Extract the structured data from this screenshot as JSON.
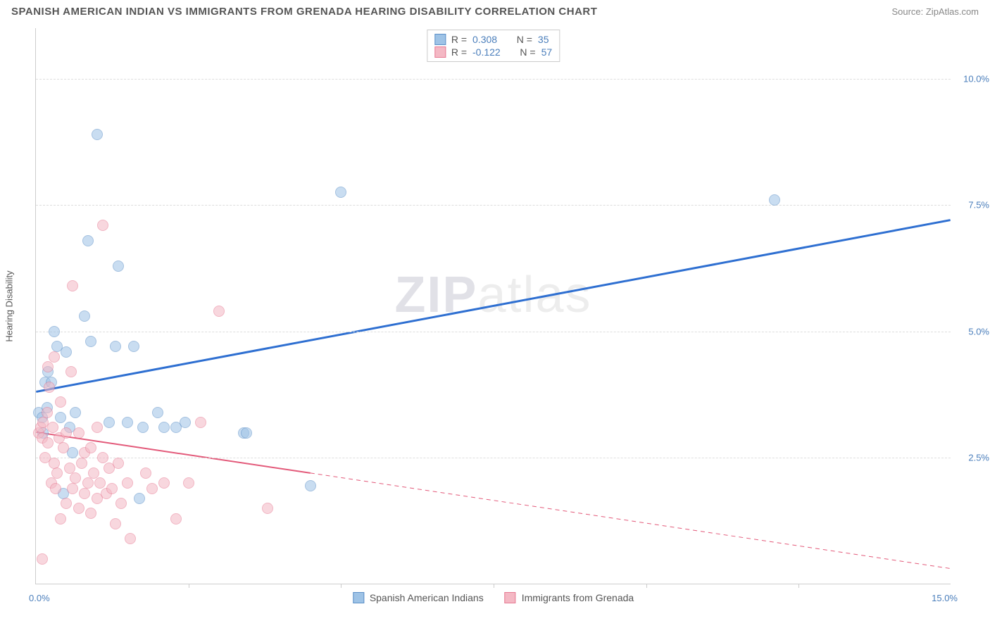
{
  "title": "SPANISH AMERICAN INDIAN VS IMMIGRANTS FROM GRENADA HEARING DISABILITY CORRELATION CHART",
  "source": "Source: ZipAtlas.com",
  "ylabel": "Hearing Disability",
  "watermark_a": "ZIP",
  "watermark_b": "atlas",
  "chart": {
    "type": "scatter",
    "xlim": [
      0,
      15
    ],
    "ylim": [
      0,
      11
    ],
    "x_axis_label_left": "0.0%",
    "x_axis_label_right": "15.0%",
    "y_ticks": [
      {
        "v": 2.5,
        "label": "2.5%"
      },
      {
        "v": 5.0,
        "label": "5.0%"
      },
      {
        "v": 7.5,
        "label": "7.5%"
      },
      {
        "v": 10.0,
        "label": "10.0%"
      }
    ],
    "x_tick_positions": [
      2.5,
      5.0,
      7.5,
      10.0,
      12.5
    ],
    "grid_color": "#dddddd",
    "background_color": "#ffffff",
    "marker_radius": 8,
    "marker_opacity": 0.55,
    "series": [
      {
        "name": "Spanish American Indians",
        "color_fill": "#9ec3e6",
        "color_stroke": "#5b8fc7",
        "R": "0.308",
        "N": "35",
        "trend": {
          "x1": 0,
          "y1": 3.8,
          "x2": 15,
          "y2": 7.2,
          "solid_until_x": 15,
          "color": "#2e6fd1",
          "width": 3
        },
        "points": [
          [
            0.05,
            3.4
          ],
          [
            0.1,
            3.3
          ],
          [
            0.12,
            3.0
          ],
          [
            0.15,
            4.0
          ],
          [
            0.18,
            3.5
          ],
          [
            0.2,
            4.2
          ],
          [
            0.25,
            4.0
          ],
          [
            0.3,
            5.0
          ],
          [
            0.35,
            4.7
          ],
          [
            0.4,
            3.3
          ],
          [
            0.45,
            1.8
          ],
          [
            0.5,
            4.6
          ],
          [
            0.55,
            3.1
          ],
          [
            0.6,
            2.6
          ],
          [
            0.65,
            3.4
          ],
          [
            0.8,
            5.3
          ],
          [
            0.85,
            6.8
          ],
          [
            0.9,
            4.8
          ],
          [
            1.0,
            8.9
          ],
          [
            1.2,
            3.2
          ],
          [
            1.3,
            4.7
          ],
          [
            1.35,
            6.3
          ],
          [
            1.5,
            3.2
          ],
          [
            1.6,
            4.7
          ],
          [
            1.7,
            1.7
          ],
          [
            1.75,
            3.1
          ],
          [
            2.0,
            3.4
          ],
          [
            2.1,
            3.1
          ],
          [
            2.3,
            3.1
          ],
          [
            2.45,
            3.2
          ],
          [
            3.4,
            3.0
          ],
          [
            3.45,
            3.0
          ],
          [
            4.5,
            1.95
          ],
          [
            5.0,
            7.75
          ],
          [
            12.1,
            7.6
          ]
        ]
      },
      {
        "name": "Immigrants from Grenada",
        "color_fill": "#f4b8c4",
        "color_stroke": "#e77a93",
        "R": "-0.122",
        "N": "57",
        "trend": {
          "x1": 0,
          "y1": 3.0,
          "x2": 15,
          "y2": 0.3,
          "solid_until_x": 4.5,
          "color": "#e35a7a",
          "width": 2
        },
        "points": [
          [
            0.05,
            3.0
          ],
          [
            0.08,
            3.1
          ],
          [
            0.1,
            2.9
          ],
          [
            0.1,
            0.5
          ],
          [
            0.12,
            3.2
          ],
          [
            0.15,
            2.5
          ],
          [
            0.18,
            3.4
          ],
          [
            0.2,
            2.8
          ],
          [
            0.2,
            4.3
          ],
          [
            0.22,
            3.9
          ],
          [
            0.25,
            2.0
          ],
          [
            0.28,
            3.1
          ],
          [
            0.3,
            2.4
          ],
          [
            0.3,
            4.5
          ],
          [
            0.32,
            1.9
          ],
          [
            0.35,
            2.2
          ],
          [
            0.38,
            2.9
          ],
          [
            0.4,
            3.6
          ],
          [
            0.4,
            1.3
          ],
          [
            0.45,
            2.7
          ],
          [
            0.5,
            1.6
          ],
          [
            0.5,
            3.0
          ],
          [
            0.55,
            2.3
          ],
          [
            0.58,
            4.2
          ],
          [
            0.6,
            1.9
          ],
          [
            0.6,
            5.9
          ],
          [
            0.65,
            2.1
          ],
          [
            0.7,
            3.0
          ],
          [
            0.7,
            1.5
          ],
          [
            0.75,
            2.4
          ],
          [
            0.8,
            1.8
          ],
          [
            0.8,
            2.6
          ],
          [
            0.85,
            2.0
          ],
          [
            0.9,
            1.4
          ],
          [
            0.9,
            2.7
          ],
          [
            0.95,
            2.2
          ],
          [
            1.0,
            1.7
          ],
          [
            1.0,
            3.1
          ],
          [
            1.05,
            2.0
          ],
          [
            1.1,
            2.5
          ],
          [
            1.1,
            7.1
          ],
          [
            1.15,
            1.8
          ],
          [
            1.2,
            2.3
          ],
          [
            1.25,
            1.9
          ],
          [
            1.3,
            1.2
          ],
          [
            1.35,
            2.4
          ],
          [
            1.4,
            1.6
          ],
          [
            1.5,
            2.0
          ],
          [
            1.55,
            0.9
          ],
          [
            1.8,
            2.2
          ],
          [
            1.9,
            1.9
          ],
          [
            2.1,
            2.0
          ],
          [
            2.3,
            1.3
          ],
          [
            2.5,
            2.0
          ],
          [
            2.7,
            3.2
          ],
          [
            3.0,
            5.4
          ],
          [
            3.8,
            1.5
          ]
        ]
      }
    ]
  },
  "legend_labels": {
    "R": "R  =",
    "N": "N  ="
  }
}
